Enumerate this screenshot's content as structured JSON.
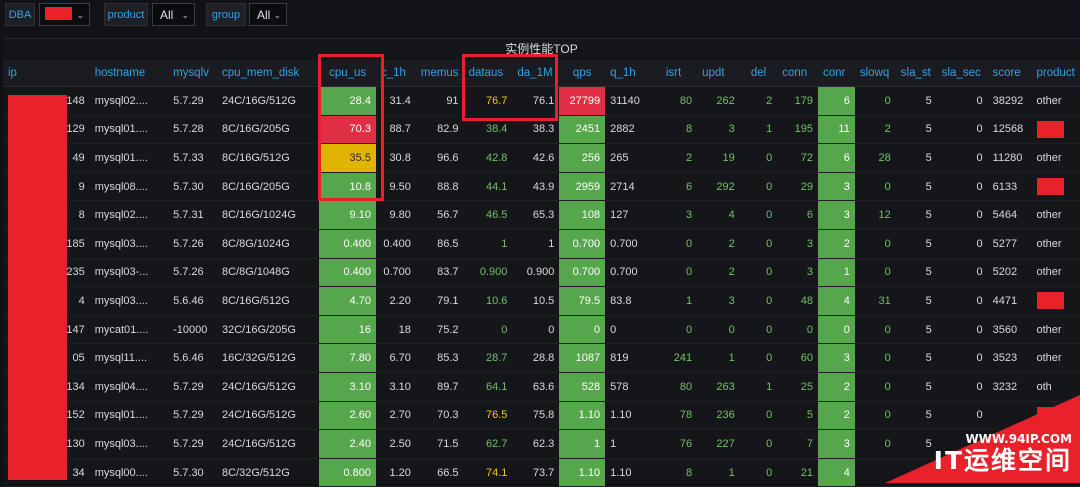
{
  "variables": {
    "dba_label": "DBA",
    "dba_value": "",
    "product_label": "product",
    "product_value": "All",
    "group_label": "group",
    "group_value": "All"
  },
  "panel": {
    "title": "实例性能TOP",
    "columns": [
      "ip",
      "hostname",
      "mysqlv",
      "cpu_mem_disk",
      "cpu_us",
      "c_1h",
      "memus",
      "dataus",
      "da_1M",
      "qps",
      "q_1h",
      "isrt",
      "updt",
      "del",
      "conn",
      "conr",
      "slowq",
      "sla_st",
      "sla_sec",
      "score",
      "product"
    ],
    "rows": [
      [
        "148",
        "mysql02....",
        "5.7.29",
        "24C/16G/512G",
        "28.4",
        "31.4",
        "91",
        "76.7",
        "76.1",
        "27799",
        "31140",
        "80",
        "262",
        "2",
        "179",
        "6",
        "0",
        "5",
        "0",
        "38292",
        "other"
      ],
      [
        "129",
        "mysql01....",
        "5.7.28",
        "8C/16G/205G",
        "70.3",
        "88.7",
        "82.9",
        "38.4",
        "38.3",
        "2451",
        "2882",
        "8",
        "3",
        "1",
        "195",
        "11",
        "2",
        "5",
        "0",
        "12568",
        ""
      ],
      [
        "49",
        "mysql01....",
        "5.7.33",
        "8C/16G/512G",
        "35.5",
        "30.8",
        "96.6",
        "42.8",
        "42.6",
        "256",
        "265",
        "2",
        "19",
        "0",
        "72",
        "6",
        "28",
        "5",
        "0",
        "11280",
        "other"
      ],
      [
        "9",
        "mysql08....",
        "5.7.30",
        "8C/16G/205G",
        "10.8",
        "9.50",
        "88.8",
        "44.1",
        "43.9",
        "2959",
        "2714",
        "6",
        "292",
        "0",
        "29",
        "3",
        "0",
        "5",
        "0",
        "6133",
        ""
      ],
      [
        "8",
        "mysql02....",
        "5.7.31",
        "8C/16G/1024G",
        "9.10",
        "9.80",
        "56.7",
        "46.5",
        "65.3",
        "108",
        "127",
        "3",
        "4",
        "0",
        "6",
        "3",
        "12",
        "5",
        "0",
        "5464",
        "other"
      ],
      [
        "185",
        "mysql03....",
        "5.7.26",
        "8C/8G/1024G",
        "0.400",
        "0.400",
        "86.5",
        "1",
        "1",
        "0.700",
        "0.700",
        "0",
        "2",
        "0",
        "3",
        "2",
        "0",
        "5",
        "0",
        "5277",
        "other"
      ],
      [
        "235",
        "mysql03-...",
        "5.7.26",
        "8C/8G/1048G",
        "0.400",
        "0.700",
        "83.7",
        "0.900",
        "0.900",
        "0.700",
        "0.700",
        "0",
        "2",
        "0",
        "3",
        "1",
        "0",
        "5",
        "0",
        "5202",
        "other"
      ],
      [
        "4",
        "mysql03....",
        "5.6.46",
        "8C/16G/512G",
        "4.70",
        "2.20",
        "79.1",
        "10.6",
        "10.5",
        "79.5",
        "83.8",
        "1",
        "3",
        "0",
        "48",
        "4",
        "31",
        "5",
        "0",
        "4471",
        ""
      ],
      [
        "147",
        "mycat01....",
        "-10000",
        "32C/16G/205G",
        "16",
        "18",
        "75.2",
        "0",
        "0",
        "0",
        "0",
        "0",
        "0",
        "0",
        "0",
        "0",
        "0",
        "5",
        "0",
        "3560",
        "other"
      ],
      [
        "05",
        "mysql11....",
        "5.6.46",
        "16C/32G/512G",
        "7.80",
        "6.70",
        "85.3",
        "28.7",
        "28.8",
        "1087",
        "819",
        "241",
        "1",
        "0",
        "60",
        "3",
        "0",
        "5",
        "0",
        "3523",
        "other"
      ],
      [
        "134",
        "mysql04....",
        "5.7.29",
        "24C/16G/512G",
        "3.10",
        "3.10",
        "89.7",
        "64.1",
        "63.6",
        "528",
        "578",
        "80",
        "263",
        "1",
        "25",
        "2",
        "0",
        "5",
        "0",
        "3232",
        "oth"
      ],
      [
        "152",
        "mysql01....",
        "5.7.29",
        "24C/16G/512G",
        "2.60",
        "2.70",
        "70.3",
        "76.5",
        "75.8",
        "1.10",
        "1.10",
        "78",
        "236",
        "0",
        "5",
        "2",
        "0",
        "5",
        "0",
        "",
        ""
      ],
      [
        "130",
        "mysql03....",
        "5.7.29",
        "24C/16G/512G",
        "2.40",
        "2.50",
        "71.5",
        "62.7",
        "62.3",
        "1",
        "1",
        "76",
        "227",
        "0",
        "7",
        "3",
        "0",
        "5",
        "",
        "",
        " "
      ],
      [
        "34",
        "mysql00....",
        "5.7.30",
        "8C/32G/512G",
        "0.800",
        "1.20",
        "66.5",
        "74.1",
        "73.7",
        "1.10",
        "1.10",
        "8",
        "1",
        "0",
        "21",
        "4",
        "",
        "",
        "",
        "",
        ""
      ]
    ],
    "cell_styles": [
      [
        "",
        "",
        "",
        "",
        "bg-g",
        "",
        "",
        "yellow",
        "",
        "bg-r",
        "",
        "green",
        "green",
        "green",
        "green",
        "bg-g",
        "green",
        "",
        "",
        "",
        ""
      ],
      [
        "",
        "",
        "",
        "",
        "bg-r",
        "",
        "",
        "green",
        "",
        "bg-g",
        "",
        "green",
        "green",
        "green",
        "green",
        "bg-g",
        "green",
        "",
        "",
        "",
        ""
      ],
      [
        "",
        "",
        "",
        "",
        "bg-y",
        "",
        "",
        "green",
        "",
        "bg-g",
        "",
        "green",
        "green",
        "green",
        "green",
        "bg-g",
        "green",
        "",
        "",
        "",
        ""
      ],
      [
        "",
        "",
        "",
        "",
        "bg-g",
        "",
        "",
        "green",
        "",
        "bg-g",
        "",
        "green",
        "green",
        "green",
        "green",
        "bg-g",
        "green",
        "",
        "",
        "",
        ""
      ],
      [
        "",
        "",
        "",
        "",
        "bg-g",
        "",
        "",
        "green",
        "",
        "bg-g",
        "",
        "green",
        "green",
        "green",
        "green",
        "bg-g",
        "green",
        "",
        "",
        "",
        ""
      ],
      [
        "",
        "",
        "",
        "",
        "bg-g",
        "",
        "",
        "green",
        "",
        "bg-g",
        "",
        "green",
        "green",
        "green",
        "green",
        "bg-g",
        "green",
        "",
        "",
        "",
        ""
      ],
      [
        "",
        "",
        "",
        "",
        "bg-g",
        "",
        "",
        "green",
        "",
        "bg-g",
        "",
        "green",
        "green",
        "green",
        "green",
        "bg-g",
        "green",
        "",
        "",
        "",
        ""
      ],
      [
        "",
        "",
        "",
        "",
        "bg-g",
        "",
        "",
        "green",
        "",
        "bg-g",
        "",
        "green",
        "green",
        "green",
        "green",
        "bg-g",
        "green",
        "",
        "",
        "",
        ""
      ],
      [
        "",
        "",
        "",
        "",
        "bg-g",
        "",
        "",
        "green",
        "",
        "bg-g",
        "",
        "green",
        "green",
        "green",
        "green",
        "bg-g",
        "green",
        "",
        "",
        "",
        ""
      ],
      [
        "",
        "",
        "",
        "",
        "bg-g",
        "",
        "",
        "green",
        "",
        "bg-g",
        "",
        "green",
        "green",
        "green",
        "green",
        "bg-g",
        "green",
        "",
        "",
        "",
        ""
      ],
      [
        "",
        "",
        "",
        "",
        "bg-g",
        "",
        "",
        "green",
        "",
        "bg-g",
        "",
        "green",
        "green",
        "green",
        "green",
        "bg-g",
        "green",
        "",
        "",
        "",
        ""
      ],
      [
        "",
        "",
        "",
        "",
        "bg-g",
        "",
        "",
        "yellow",
        "",
        "bg-g",
        "",
        "green",
        "green",
        "green",
        "green",
        "bg-g",
        "green",
        "",
        "",
        "",
        ""
      ],
      [
        "",
        "",
        "",
        "",
        "bg-g",
        "",
        "",
        "green",
        "",
        "bg-g",
        "",
        "green",
        "green",
        "green",
        "green",
        "bg-g",
        "green",
        "",
        "",
        "",
        ""
      ],
      [
        "",
        "",
        "",
        "",
        "bg-g",
        "",
        "",
        "yellow",
        "",
        "bg-g",
        "",
        "green",
        "green",
        "green",
        "green",
        "bg-g",
        "green",
        "",
        "",
        "",
        ""
      ]
    ]
  },
  "watermark": {
    "url": "WWW.94IP.COM",
    "text": "IT运维空间"
  },
  "colors": {
    "accent_blue": "#33a2e5",
    "ok_green": "#56a64b",
    "critical_red": "#e02f44",
    "warn_yellow": "#e0b400",
    "annotation_red": "#e8222a"
  }
}
